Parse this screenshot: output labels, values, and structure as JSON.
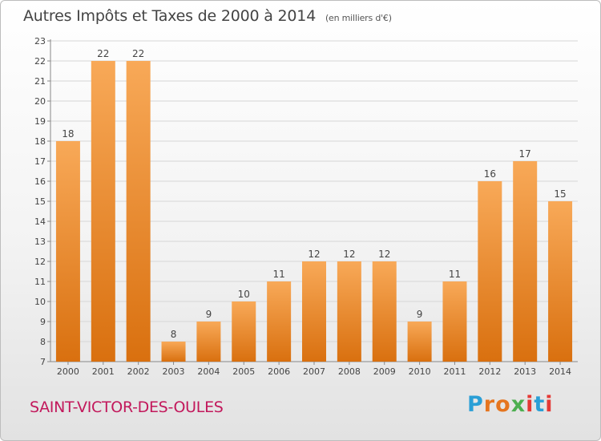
{
  "header": {
    "title": "Autres Impôts et Taxes de 2000 à 2014",
    "subtitle": "(en milliers d'€)"
  },
  "footer": {
    "commune": "SAINT-VICTOR-DES-OULES",
    "logo_letters": [
      "P",
      "r",
      "o",
      "x",
      "i",
      "t",
      "i"
    ],
    "logo_colors": [
      "#2a9fd6",
      "#e5751f",
      "#e5751f",
      "#4caf50",
      "#e53935",
      "#2a9fd6",
      "#e53935"
    ]
  },
  "colors": {
    "bar_light": "#f8a958",
    "bar_dark": "#d9700f",
    "grid": "#d6d6d6",
    "title": "#444444",
    "commune": "#c2185b"
  },
  "chart_data": {
    "type": "bar",
    "title": "Autres Impôts et Taxes de 2000 à 2014",
    "subtitle": "(en milliers d'€)",
    "xlabel": "",
    "ylabel": "",
    "categories": [
      "2000",
      "2001",
      "2002",
      "2003",
      "2004",
      "2005",
      "2006",
      "2007",
      "2008",
      "2009",
      "2010",
      "2011",
      "2012",
      "2013",
      "2014"
    ],
    "values": [
      18,
      22,
      22,
      8,
      9,
      10,
      11,
      12,
      12,
      12,
      9,
      11,
      16,
      17,
      15
    ],
    "ylim": [
      7,
      23
    ],
    "yticks": [
      7,
      8,
      9,
      10,
      11,
      12,
      13,
      14,
      15,
      16,
      17,
      18,
      19,
      20,
      21,
      22,
      23
    ],
    "grid": true,
    "legend": "none"
  }
}
